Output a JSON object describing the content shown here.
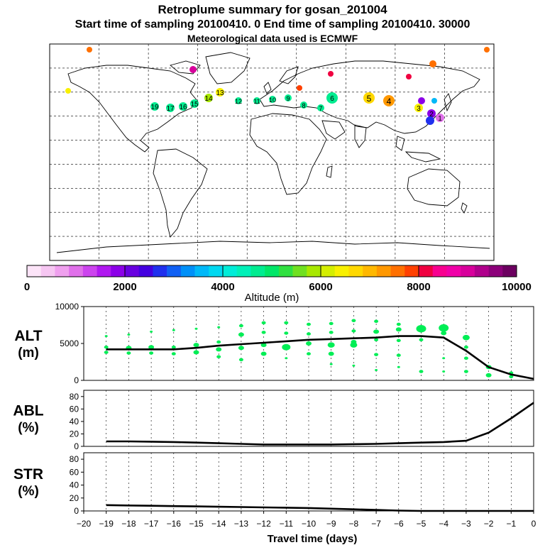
{
  "header": {
    "title": "Retroplume summary for gosan_201004",
    "sampling": "Start time of sampling 20100410.    0     End time of sampling 20100410. 30000",
    "met": "Meteorological data used is ECMWF"
  },
  "colorbar": {
    "title": "Altitude (m)",
    "ticks": [
      "0",
      "2000",
      "4000",
      "6000",
      "8000",
      "10000"
    ],
    "colors": [
      "#fce4f8",
      "#f6c6f2",
      "#efa0ee",
      "#e070ea",
      "#cc44ee",
      "#b018f0",
      "#8c00e8",
      "#6800e0",
      "#4400e0",
      "#2030ee",
      "#1060f4",
      "#0090f8",
      "#00b8f8",
      "#00d8f0",
      "#00ecd8",
      "#00f0b8",
      "#00ec90",
      "#00e668",
      "#30e040",
      "#70e020",
      "#a8e800",
      "#d4ee00",
      "#f8f000",
      "#ffd800",
      "#ffb800",
      "#ff9800",
      "#ff7000",
      "#ff4000",
      "#f00040",
      "#f80090",
      "#f000a8",
      "#d8009c",
      "#b0008c",
      "#8c007a",
      "#6c0060"
    ]
  },
  "map": {
    "labels": [
      {
        "text": "19",
        "color": "#00ec90"
      },
      {
        "text": "17",
        "color": "#00ec90"
      },
      {
        "text": "16",
        "color": "#00ec90"
      },
      {
        "text": "15",
        "color": "#00ec90"
      },
      {
        "text": "14",
        "color": "#a8e800"
      },
      {
        "text": "13",
        "color": "#f8f000"
      },
      {
        "text": "12",
        "color": "#00ec90"
      },
      {
        "text": "11",
        "color": "#00ec90"
      },
      {
        "text": "10",
        "color": "#00ec90"
      },
      {
        "text": "9",
        "color": "#00ec90"
      },
      {
        "text": "8",
        "color": "#00ec90"
      },
      {
        "text": "7",
        "color": "#00ec90"
      },
      {
        "text": "6",
        "color": "#f8f000"
      },
      {
        "text": "5",
        "color": "#ffd800"
      },
      {
        "text": "4",
        "color": "#ff9800"
      },
      {
        "text": "3",
        "color": "#f8f000"
      },
      {
        "text": "2",
        "color": "#8c00e8"
      },
      {
        "text": "1",
        "color": "#e070ea"
      }
    ]
  },
  "chart_data": [
    {
      "type": "scatter",
      "panel": "ALT",
      "ylabel": "ALT\n(m)",
      "ylabel_line1": "ALT",
      "ylabel_line2": "(m)",
      "xlim": [
        -20,
        0
      ],
      "ylim": [
        0,
        10000
      ],
      "yticks": [
        0,
        5000,
        10000
      ],
      "point_color": "#00ee55",
      "line_color": "#000000",
      "line_x": [
        -19,
        -18,
        -17,
        -16,
        -15,
        -14,
        -13,
        -12,
        -11,
        -10,
        -9,
        -8,
        -7,
        -6,
        -5,
        -4,
        -3,
        -2,
        -1,
        0
      ],
      "line_y": [
        4200,
        4200,
        4200,
        4200,
        4400,
        4700,
        4900,
        5100,
        5300,
        5500,
        5600,
        5700,
        5800,
        6000,
        6000,
        5800,
        4000,
        1800,
        800,
        200
      ],
      "points": [
        {
          "x": -19,
          "y": 6000,
          "size": 2
        },
        {
          "x": -19,
          "y": 4500,
          "size": 3
        },
        {
          "x": -19,
          "y": 3800,
          "size": 3
        },
        {
          "x": -18,
          "y": 6200,
          "size": 2
        },
        {
          "x": -18,
          "y": 4400,
          "size": 4
        },
        {
          "x": -18,
          "y": 3700,
          "size": 3
        },
        {
          "x": -17,
          "y": 6600,
          "size": 2
        },
        {
          "x": -17,
          "y": 4500,
          "size": 4
        },
        {
          "x": -17,
          "y": 3700,
          "size": 3
        },
        {
          "x": -16,
          "y": 6800,
          "size": 2
        },
        {
          "x": -16,
          "y": 4500,
          "size": 3
        },
        {
          "x": -16,
          "y": 3600,
          "size": 3
        },
        {
          "x": -15,
          "y": 7000,
          "size": 2
        },
        {
          "x": -15,
          "y": 4800,
          "size": 4
        },
        {
          "x": -15,
          "y": 3800,
          "size": 4
        },
        {
          "x": -14,
          "y": 7200,
          "size": 2
        },
        {
          "x": -14,
          "y": 5200,
          "size": 3
        },
        {
          "x": -14,
          "y": 4200,
          "size": 4
        },
        {
          "x": -14,
          "y": 3200,
          "size": 3
        },
        {
          "x": -13,
          "y": 7400,
          "size": 3
        },
        {
          "x": -13,
          "y": 6200,
          "size": 4
        },
        {
          "x": -13,
          "y": 4400,
          "size": 4
        },
        {
          "x": -13,
          "y": 2800,
          "size": 3
        },
        {
          "x": -12,
          "y": 7800,
          "size": 3
        },
        {
          "x": -12,
          "y": 6500,
          "size": 3
        },
        {
          "x": -12,
          "y": 4800,
          "size": 4
        },
        {
          "x": -12,
          "y": 3600,
          "size": 4
        },
        {
          "x": -11,
          "y": 7800,
          "size": 3
        },
        {
          "x": -11,
          "y": 6400,
          "size": 3
        },
        {
          "x": -11,
          "y": 4500,
          "size": 6
        },
        {
          "x": -11,
          "y": 3000,
          "size": 2
        },
        {
          "x": -10,
          "y": 7600,
          "size": 3
        },
        {
          "x": -10,
          "y": 6300,
          "size": 3
        },
        {
          "x": -10,
          "y": 5000,
          "size": 4
        },
        {
          "x": -10,
          "y": 3600,
          "size": 3
        },
        {
          "x": -9,
          "y": 7700,
          "size": 3
        },
        {
          "x": -9,
          "y": 6500,
          "size": 3
        },
        {
          "x": -9,
          "y": 4800,
          "size": 5
        },
        {
          "x": -9,
          "y": 3600,
          "size": 4
        },
        {
          "x": -9,
          "y": 2200,
          "size": 2
        },
        {
          "x": -8,
          "y": 8100,
          "size": 3
        },
        {
          "x": -8,
          "y": 6700,
          "size": 3
        },
        {
          "x": -8,
          "y": 5200,
          "size": 4
        },
        {
          "x": -8,
          "y": 4800,
          "size": 5
        },
        {
          "x": -8,
          "y": 2000,
          "size": 2
        },
        {
          "x": -7,
          "y": 8000,
          "size": 3
        },
        {
          "x": -7,
          "y": 6600,
          "size": 4
        },
        {
          "x": -7,
          "y": 5500,
          "size": 3
        },
        {
          "x": -7,
          "y": 3500,
          "size": 3
        },
        {
          "x": -7,
          "y": 1400,
          "size": 2
        },
        {
          "x": -6,
          "y": 7600,
          "size": 3
        },
        {
          "x": -6,
          "y": 6900,
          "size": 4
        },
        {
          "x": -6,
          "y": 5400,
          "size": 3
        },
        {
          "x": -6,
          "y": 3400,
          "size": 3
        },
        {
          "x": -6,
          "y": 1800,
          "size": 2
        },
        {
          "x": -5,
          "y": 7000,
          "size": 7
        },
        {
          "x": -5,
          "y": 5500,
          "size": 3
        },
        {
          "x": -5,
          "y": 1200,
          "size": 3
        },
        {
          "x": -4,
          "y": 7100,
          "size": 7
        },
        {
          "x": -4,
          "y": 6400,
          "size": 4
        },
        {
          "x": -4,
          "y": 3000,
          "size": 2
        },
        {
          "x": -4,
          "y": 1200,
          "size": 2
        },
        {
          "x": -3,
          "y": 5800,
          "size": 5
        },
        {
          "x": -3,
          "y": 4500,
          "size": 3
        },
        {
          "x": -3,
          "y": 3000,
          "size": 3
        },
        {
          "x": -3,
          "y": 1200,
          "size": 3
        },
        {
          "x": -2,
          "y": 1800,
          "size": 4
        },
        {
          "x": -2,
          "y": 700,
          "size": 4
        },
        {
          "x": -1,
          "y": 1000,
          "size": 3
        },
        {
          "x": -1,
          "y": 500,
          "size": 3
        }
      ]
    },
    {
      "type": "line",
      "panel": "ABL",
      "ylabel": "ABL\n(%)",
      "ylabel_line1": "ABL",
      "ylabel_line2": "(%)",
      "xlim": [
        -20,
        0
      ],
      "ylim": [
        0,
        90
      ],
      "yticks": [
        0,
        20,
        40,
        60,
        80
      ],
      "x": [
        -19,
        -18,
        -17,
        -16,
        -15,
        -14,
        -13,
        -12,
        -11,
        -10,
        -9,
        -8,
        -7,
        -6,
        -5,
        -4,
        -3,
        -2,
        -1,
        0
      ],
      "y": [
        8,
        8,
        7.5,
        7,
        6,
        5,
        4,
        3,
        3,
        3,
        3,
        3.5,
        4,
        5,
        6,
        7,
        9,
        22,
        45,
        70
      ]
    },
    {
      "type": "line",
      "panel": "STR",
      "ylabel": "STR\n(%)",
      "ylabel_line1": "STR",
      "ylabel_line2": "(%)",
      "xlim": [
        -20,
        0
      ],
      "ylim": [
        0,
        90
      ],
      "yticks": [
        0,
        20,
        40,
        60,
        80
      ],
      "x": [
        -19,
        -18,
        -17,
        -16,
        -15,
        -14,
        -13,
        -12,
        -11,
        -10,
        -9,
        -8,
        -7,
        -6,
        -5,
        -4,
        -3,
        -2,
        -1,
        0
      ],
      "y": [
        9,
        8.5,
        8,
        7.5,
        7,
        6.5,
        6,
        5.5,
        5,
        4.5,
        3.5,
        2.5,
        1.5,
        0.5,
        0,
        0,
        0,
        0,
        0,
        0
      ]
    }
  ],
  "xaxis": {
    "label": "Travel time (days)",
    "ticks": [
      "-20",
      "-19",
      "-18",
      "-17",
      "-16",
      "-15",
      "-14",
      "-13",
      "-12",
      "-11",
      "-10",
      "-9",
      "-8",
      "-7",
      "-6",
      "-5",
      "-4",
      "-3",
      "-2",
      "-1",
      "0"
    ]
  }
}
